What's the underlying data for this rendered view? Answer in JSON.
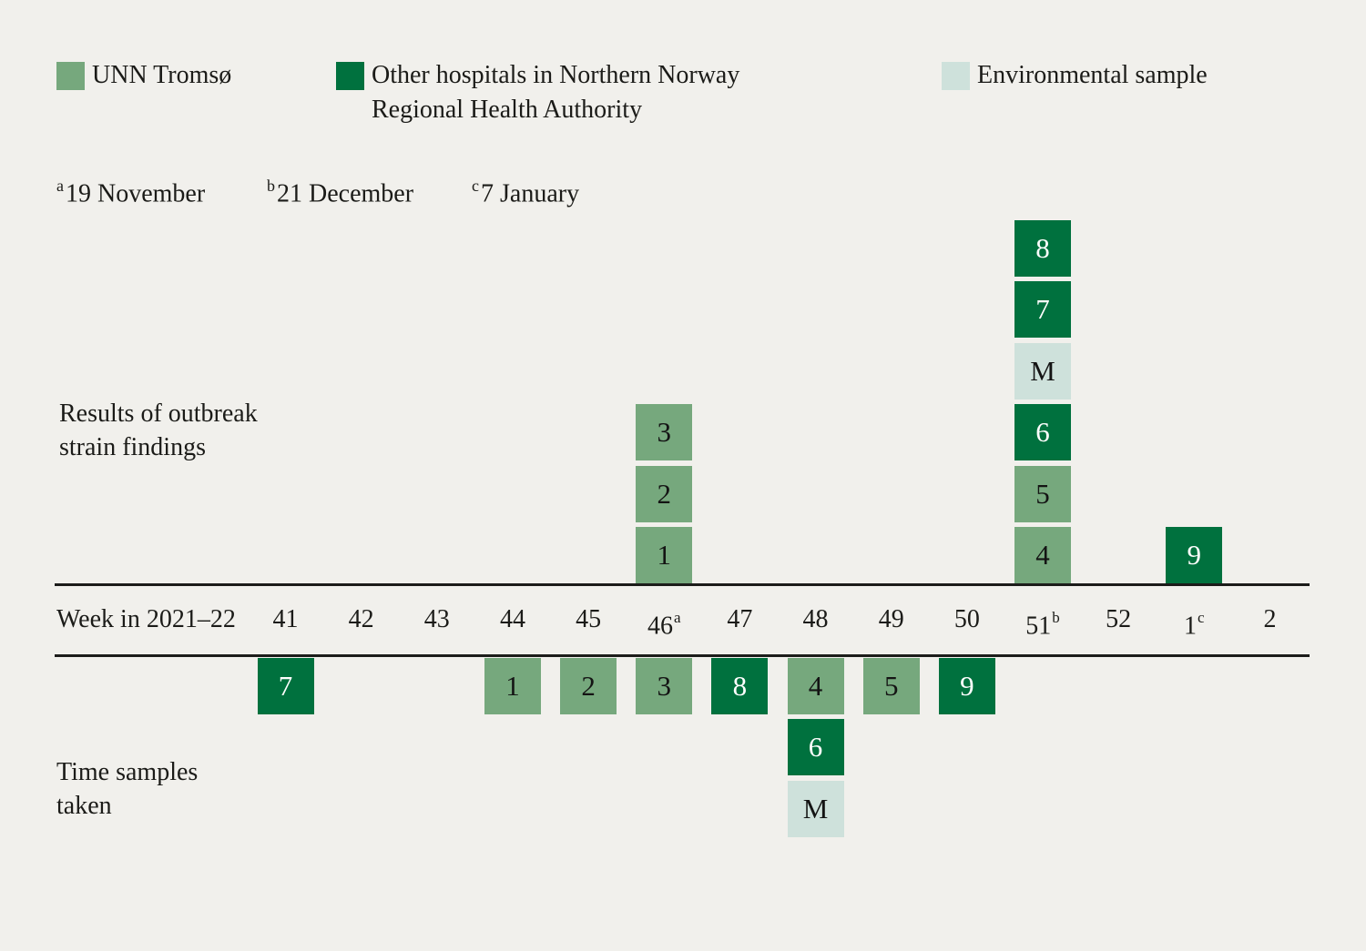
{
  "colors": {
    "unn": "#76a87d",
    "other": "#00713e",
    "environmental": "#cee1db",
    "background": "#f1f0ec",
    "line": "#1c1c1a"
  },
  "legend": {
    "items": [
      {
        "lines": [
          "UNN Tromsø"
        ],
        "color": "unn"
      },
      {
        "lines": [
          "Other hospitals in Northern Norway",
          "Regional Health Authority"
        ],
        "color": "other"
      },
      {
        "lines": [
          "Environmental sample"
        ],
        "color": "environmental"
      }
    ]
  },
  "footnotes": [
    {
      "marker": "a",
      "text": "19 November"
    },
    {
      "marker": "b",
      "text": "21 December"
    },
    {
      "marker": "c",
      "text": "7 January"
    }
  ],
  "row_labels": {
    "top": [
      "Results of outbreak",
      "strain findings"
    ],
    "bottom": [
      "Time samples",
      "taken"
    ]
  },
  "axis": {
    "label": "Week in 2021–22",
    "weeks": [
      {
        "label": "41"
      },
      {
        "label": "42"
      },
      {
        "label": "43"
      },
      {
        "label": "44"
      },
      {
        "label": "45"
      },
      {
        "label": "46",
        "sup": "a"
      },
      {
        "label": "47"
      },
      {
        "label": "48"
      },
      {
        "label": "49"
      },
      {
        "label": "50"
      },
      {
        "label": "51",
        "sup": "b"
      },
      {
        "label": "52"
      },
      {
        "label": "1",
        "sup": "c"
      },
      {
        "label": "2"
      }
    ]
  },
  "chart_data": {
    "type": "bar",
    "subtype": "outbreak-timeline",
    "title": "",
    "xlabel": "Week in 2021–22",
    "categories": [
      "41",
      "42",
      "43",
      "44",
      "45",
      "46a",
      "47",
      "48",
      "49",
      "50",
      "51b",
      "52",
      "1c",
      "2"
    ],
    "legend_groups": {
      "unn": "UNN Tromsø",
      "other": "Other hospitals in Northern Norway Regional Health Authority",
      "environmental": "Environmental sample"
    },
    "results_of_outbreak_strain_findings": [
      {
        "week": "46",
        "stack_bottom_to_top": [
          {
            "id": "1",
            "group": "unn"
          },
          {
            "id": "2",
            "group": "unn"
          },
          {
            "id": "3",
            "group": "unn"
          }
        ]
      },
      {
        "week": "51",
        "stack_bottom_to_top": [
          {
            "id": "4",
            "group": "unn"
          },
          {
            "id": "5",
            "group": "unn"
          },
          {
            "id": "6",
            "group": "other"
          },
          {
            "id": "M",
            "group": "environmental"
          },
          {
            "id": "7",
            "group": "other"
          },
          {
            "id": "8",
            "group": "other"
          }
        ]
      },
      {
        "week": "1",
        "stack_bottom_to_top": [
          {
            "id": "9",
            "group": "other"
          }
        ]
      }
    ],
    "time_samples_taken": [
      {
        "week": "41",
        "stack_top_to_bottom": [
          {
            "id": "7",
            "group": "other"
          }
        ]
      },
      {
        "week": "44",
        "stack_top_to_bottom": [
          {
            "id": "1",
            "group": "unn"
          }
        ]
      },
      {
        "week": "45",
        "stack_top_to_bottom": [
          {
            "id": "2",
            "group": "unn"
          }
        ]
      },
      {
        "week": "46",
        "stack_top_to_bottom": [
          {
            "id": "3",
            "group": "unn"
          }
        ]
      },
      {
        "week": "47",
        "stack_top_to_bottom": [
          {
            "id": "8",
            "group": "other"
          }
        ]
      },
      {
        "week": "48",
        "stack_top_to_bottom": [
          {
            "id": "4",
            "group": "unn"
          },
          {
            "id": "6",
            "group": "other"
          },
          {
            "id": "M",
            "group": "environmental"
          }
        ]
      },
      {
        "week": "49",
        "stack_top_to_bottom": [
          {
            "id": "5",
            "group": "unn"
          }
        ]
      },
      {
        "week": "50",
        "stack_top_to_bottom": [
          {
            "id": "9",
            "group": "other"
          }
        ]
      }
    ]
  }
}
